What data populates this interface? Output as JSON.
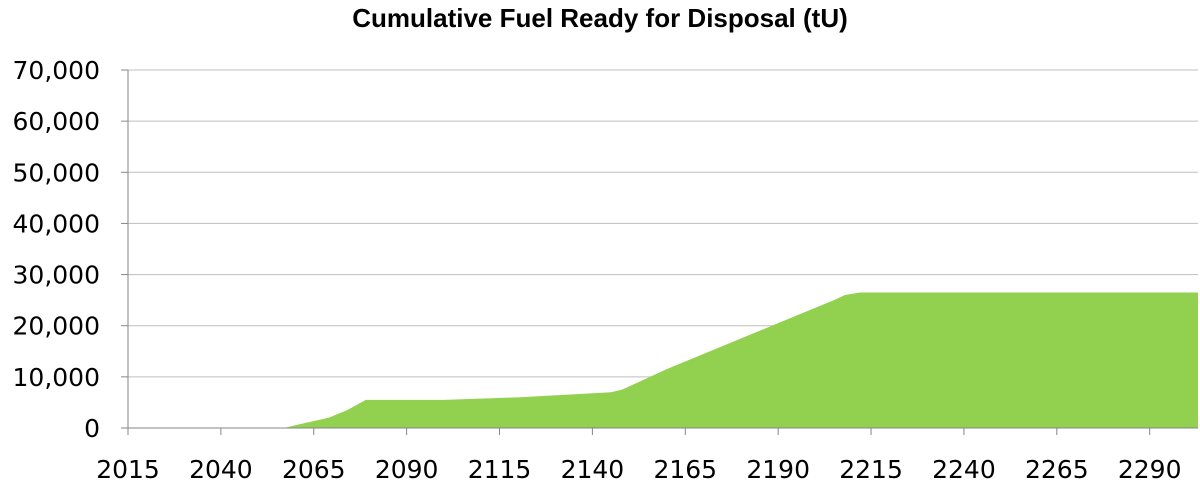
{
  "chart_data": {
    "type": "area",
    "title": "Cumulative Fuel Ready for Disposal (tU)",
    "xlabel": "",
    "ylabel": "",
    "x_ticks": [
      "2015",
      "2040",
      "2065",
      "2090",
      "2115",
      "2140",
      "2165",
      "2190",
      "2215",
      "2240",
      "2265",
      "2290"
    ],
    "y_ticks": [
      "0",
      "10,000",
      "20,000",
      "30,000",
      "40,000",
      "50,000",
      "60,000",
      "70,000"
    ],
    "xlim": [
      2015,
      2303
    ],
    "ylim": [
      0,
      70000
    ],
    "grid": "horizontal",
    "legend": "none",
    "color": "#92d050",
    "series": [
      {
        "x": [
          2015,
          2057,
          2061,
          2069,
          2074,
          2079,
          2100,
          2120,
          2145,
          2148,
          2160,
          2175,
          2190,
          2205,
          2208,
          2212,
          2240,
          2303
        ],
        "values": [
          0,
          0,
          700,
          2000,
          3500,
          5500,
          5500,
          6000,
          7000,
          7500,
          11500,
          16000,
          20500,
          25000,
          26000,
          26500,
          26500,
          26500
        ]
      }
    ]
  }
}
